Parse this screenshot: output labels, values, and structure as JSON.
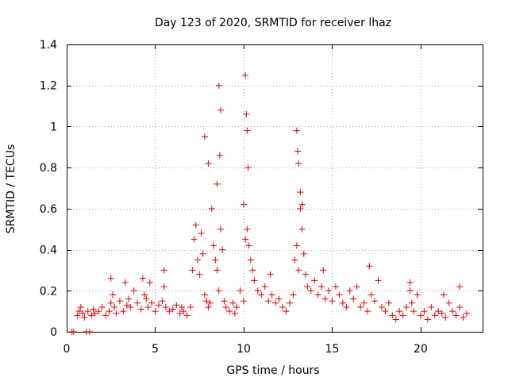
{
  "chart_data": {
    "type": "scatter",
    "title": "Day 123 of 2020, SRMTID for receiver lhaz",
    "xlabel": "GPS time / hours",
    "ylabel": "SRMTID / TECUs",
    "xlim": [
      0,
      23.5
    ],
    "ylim": [
      0,
      1.4
    ],
    "xticks": [
      0,
      5,
      10,
      15,
      20
    ],
    "xtick_labels": [
      "0",
      "5",
      "10",
      "15",
      "20"
    ],
    "yticks": [
      0,
      0.2,
      0.4,
      0.6,
      0.8,
      1.0,
      1.2,
      1.4
    ],
    "ytick_labels": [
      "0",
      "0.2",
      "0.4",
      "0.6",
      "0.8",
      "1",
      "1.2",
      "1.4"
    ],
    "grid": true,
    "marker": "+",
    "color": "#e00000",
    "series": [
      {
        "name": "SRMTID",
        "x": [
          0.3,
          0.4,
          1.1,
          1.3,
          0.6,
          0.7,
          0.8,
          0.9,
          1.0,
          1.2,
          1.4,
          1.5,
          1.6,
          1.8,
          2.0,
          2.2,
          2.4,
          2.5,
          2.6,
          2.7,
          2.8,
          3.0,
          3.2,
          3.4,
          3.5,
          3.6,
          3.8,
          4.0,
          4.2,
          4.4,
          4.5,
          4.6,
          4.8,
          5.0,
          5.2,
          5.4,
          5.5,
          5.6,
          5.8,
          6.0,
          6.2,
          6.4,
          6.5,
          6.6,
          6.8,
          7.0,
          7.1,
          7.2,
          7.3,
          7.4,
          7.5,
          7.6,
          7.7,
          7.8,
          7.9,
          8.0,
          8.1,
          8.2,
          8.3,
          8.4,
          8.5,
          8.6,
          8.7,
          8.8,
          8.9,
          9.0,
          9.2,
          9.4,
          9.5,
          9.6,
          9.8,
          10.0,
          10.1,
          10.2,
          10.3,
          10.4,
          10.5,
          10.6,
          10.8,
          11.0,
          11.2,
          11.4,
          11.5,
          11.6,
          11.8,
          12.0,
          12.2,
          12.4,
          12.6,
          12.8,
          12.9,
          13.0,
          13.1,
          13.2,
          13.3,
          13.4,
          13.5,
          13.6,
          13.8,
          14.0,
          14.2,
          14.4,
          14.5,
          14.6,
          14.8,
          15.0,
          15.2,
          15.4,
          15.6,
          15.8,
          16.0,
          16.2,
          16.4,
          16.6,
          16.8,
          17.0,
          17.2,
          17.4,
          17.6,
          17.8,
          18.0,
          18.2,
          18.4,
          18.6,
          18.8,
          19.0,
          19.2,
          19.4,
          19.5,
          19.6,
          19.8,
          20.0,
          20.2,
          20.4,
          20.6,
          20.8,
          21.0,
          21.2,
          21.4,
          21.6,
          21.8,
          22.0,
          22.2,
          22.4,
          22.6,
          2.5,
          3.3,
          4.3,
          4.7,
          5.5,
          7.8,
          8.0,
          8.5,
          8.7,
          8.6,
          8.65,
          10.0,
          10.1,
          10.15,
          10.2,
          10.25,
          13.0,
          13.05,
          13.1,
          13.2,
          13.3,
          17.1,
          19.4,
          21.3,
          22.2
        ],
        "y": [
          0.0,
          0.0,
          0.0,
          0.0,
          0.08,
          0.1,
          0.12,
          0.09,
          0.07,
          0.1,
          0.08,
          0.11,
          0.09,
          0.1,
          0.12,
          0.08,
          0.1,
          0.14,
          0.18,
          0.12,
          0.09,
          0.15,
          0.1,
          0.13,
          0.16,
          0.12,
          0.2,
          0.14,
          0.11,
          0.18,
          0.16,
          0.12,
          0.14,
          0.1,
          0.13,
          0.15,
          0.22,
          0.12,
          0.1,
          0.11,
          0.13,
          0.09,
          0.12,
          0.1,
          0.08,
          0.12,
          0.3,
          0.45,
          0.52,
          0.35,
          0.28,
          0.48,
          0.38,
          0.18,
          0.15,
          0.12,
          0.14,
          0.6,
          0.42,
          0.35,
          0.3,
          0.2,
          0.5,
          0.4,
          0.15,
          0.12,
          0.1,
          0.14,
          0.09,
          0.12,
          0.2,
          0.15,
          0.45,
          0.5,
          0.42,
          0.35,
          0.3,
          0.25,
          0.2,
          0.18,
          0.22,
          0.15,
          0.28,
          0.18,
          0.14,
          0.16,
          0.12,
          0.1,
          0.14,
          0.18,
          0.35,
          0.42,
          0.3,
          0.6,
          0.5,
          0.38,
          0.28,
          0.22,
          0.2,
          0.25,
          0.18,
          0.22,
          0.3,
          0.16,
          0.2,
          0.15,
          0.22,
          0.18,
          0.14,
          0.12,
          0.2,
          0.16,
          0.22,
          0.12,
          0.14,
          0.1,
          0.18,
          0.15,
          0.25,
          0.12,
          0.1,
          0.14,
          0.08,
          0.06,
          0.1,
          0.08,
          0.12,
          0.2,
          0.14,
          0.1,
          0.18,
          0.08,
          0.1,
          0.06,
          0.12,
          0.08,
          0.1,
          0.09,
          0.07,
          0.14,
          0.1,
          0.08,
          0.12,
          0.07,
          0.09,
          0.26,
          0.24,
          0.26,
          0.24,
          0.3,
          0.95,
          0.82,
          0.72,
          1.08,
          1.2,
          0.86,
          0.62,
          1.25,
          1.06,
          0.98,
          0.8,
          0.98,
          0.88,
          0.82,
          0.68,
          0.62,
          0.32,
          0.24,
          0.18,
          0.22
        ]
      }
    ]
  }
}
